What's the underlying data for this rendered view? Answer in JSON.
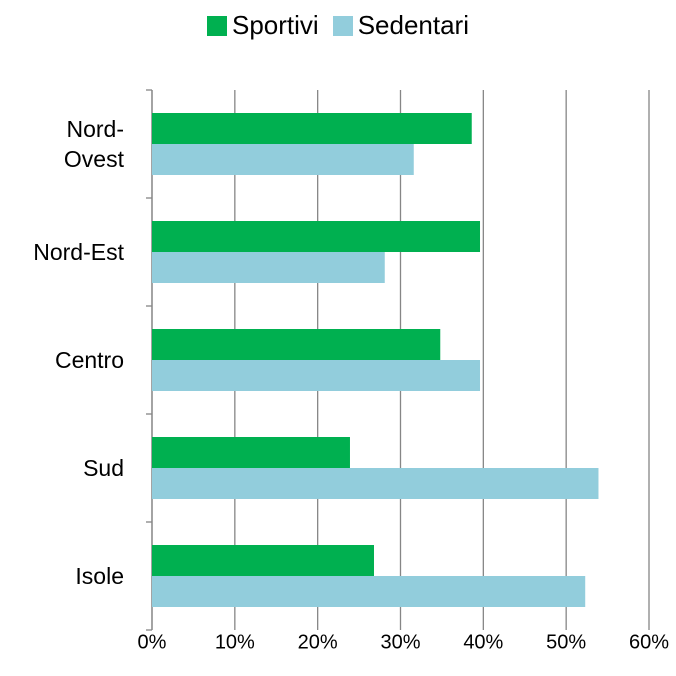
{
  "chart_data": {
    "type": "bar",
    "orientation": "horizontal",
    "categories": [
      "Nord-Ovest",
      "Nord-Est",
      "Centro",
      "Sud",
      "Isole"
    ],
    "series": [
      {
        "name": "Sportivi",
        "color": "#00b050",
        "values": [
          38.6,
          39.6,
          34.8,
          23.9,
          26.8
        ]
      },
      {
        "name": "Sedentari",
        "color": "#92cddc",
        "values": [
          31.6,
          28.1,
          39.6,
          53.9,
          52.3
        ]
      }
    ],
    "xlim": [
      0,
      60
    ],
    "xticks": [
      {
        "value": 0,
        "label": "0%"
      },
      {
        "value": 10,
        "label": "10%"
      },
      {
        "value": 20,
        "label": "20%"
      },
      {
        "value": 30,
        "label": "30%"
      },
      {
        "value": 40,
        "label": "40%"
      },
      {
        "value": 50,
        "label": "50%"
      },
      {
        "value": 60,
        "label": "60%"
      }
    ],
    "grid": true,
    "legend": "top"
  }
}
